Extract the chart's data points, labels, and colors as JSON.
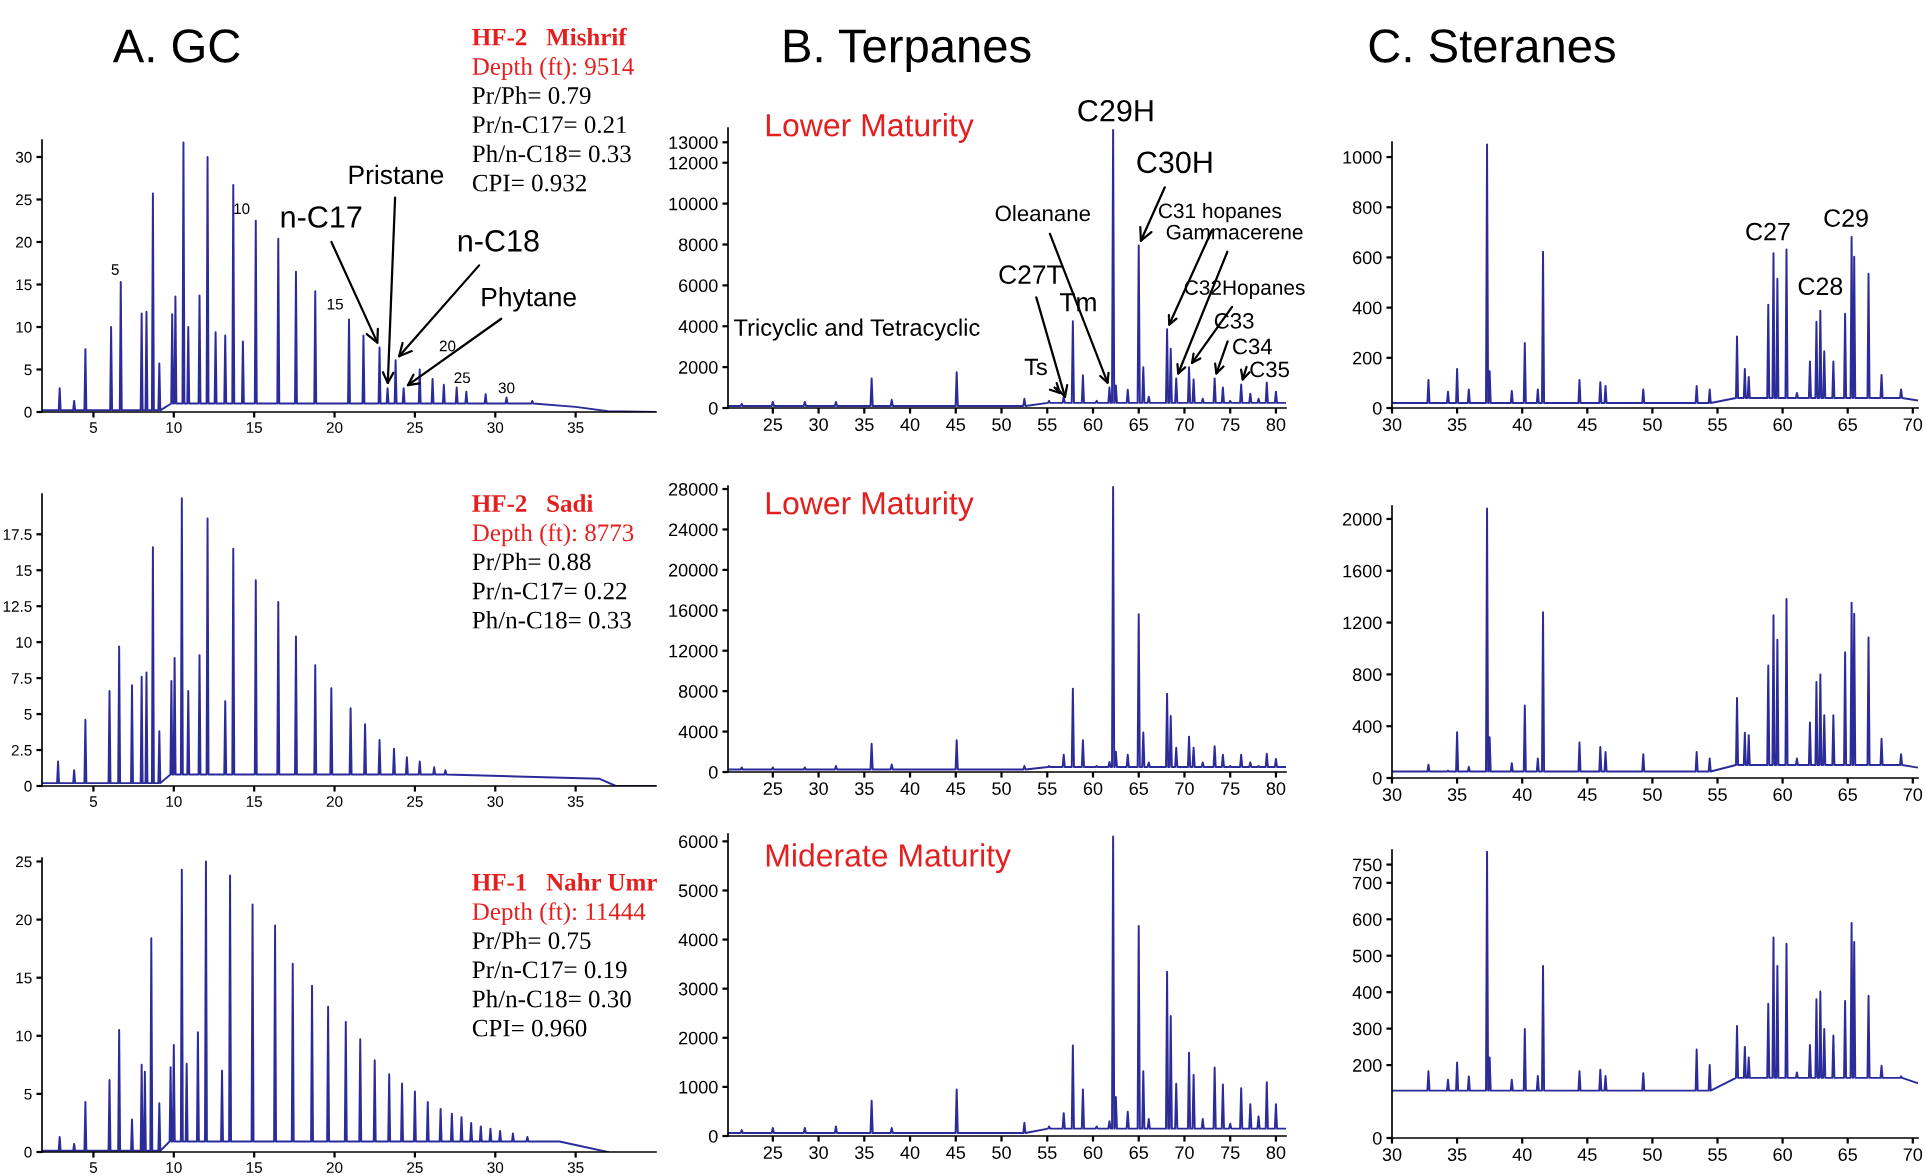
{
  "chart_data": [
    {
      "type": "line",
      "title": "A. GC",
      "color": "#2b2b9a",
      "xlim": [
        1.8,
        40
      ],
      "xticks": [
        5,
        10,
        15,
        20,
        25,
        30,
        35
      ],
      "ylim": [
        0,
        32
      ],
      "yticks": [
        0,
        5,
        10,
        15,
        20,
        25,
        30
      ],
      "x": [
        1.8,
        2.84,
        2.9,
        2.96,
        3.74,
        3.8,
        3.86,
        4.44,
        4.5,
        4.56,
        6.04,
        6.1,
        6.16,
        6.64,
        6.7,
        6.76,
        7.94,
        8.0,
        8.06,
        8.24,
        8.3,
        8.36,
        8.64,
        8.7,
        8.76,
        9.04,
        9.1,
        9.16,
        9.84,
        9.9,
        9.96,
        10.04,
        10.1,
        10.16,
        10.54,
        10.6,
        10.66,
        10.84,
        10.9,
        10.96,
        11.54,
        11.6,
        11.66,
        12.04,
        12.1,
        12.16,
        12.54,
        12.6,
        12.66,
        13.14,
        13.2,
        13.26,
        13.64,
        13.7,
        13.76,
        14.24,
        14.3,
        14.36,
        15.04,
        15.1,
        15.16,
        16.44,
        16.5,
        16.56,
        17.54,
        17.6,
        17.66,
        18.74,
        18.8,
        18.86,
        20.84,
        20.9,
        20.96,
        21.74,
        21.8,
        21.86,
        22.74,
        22.8,
        22.86,
        23.24,
        23.3,
        23.36,
        23.74,
        23.8,
        23.86,
        24.24,
        24.3,
        24.36,
        25.24,
        25.3,
        25.36,
        26.04,
        26.1,
        26.16,
        26.74,
        26.8,
        26.86,
        27.54,
        27.6,
        27.66,
        28.14,
        28.2,
        28.26,
        29.34,
        29.4,
        29.46,
        30.64,
        30.7,
        30.76,
        32.24,
        32.3,
        32.36,
        35,
        37,
        40
      ],
      "values": [
        0.2,
        0.2,
        2.8,
        0.2,
        0.2,
        1.3,
        0.2,
        0.2,
        7.4,
        0.2,
        0.2,
        10,
        0.2,
        0.2,
        15.3,
        0.2,
        0.2,
        11.6,
        0.2,
        0.2,
        11.8,
        0.2,
        0.2,
        25.7,
        0.2,
        0.2,
        5.7,
        0.2,
        1,
        11.5,
        1,
        1,
        13.6,
        1,
        1,
        31.7,
        1,
        1,
        10,
        1,
        1,
        13.7,
        1,
        1,
        30,
        1,
        1,
        9.4,
        1,
        1,
        9,
        1,
        1,
        26.7,
        1,
        1,
        8.3,
        1,
        1,
        22.5,
        1,
        1,
        20.4,
        1,
        1,
        16.5,
        1,
        1,
        14.2,
        1,
        1,
        10.9,
        1,
        1,
        9,
        1,
        1,
        7.6,
        1,
        1,
        2.8,
        1,
        1,
        6.1,
        1,
        1,
        2.8,
        1,
        1,
        5,
        1,
        1,
        3.9,
        1,
        1,
        3.2,
        1,
        1,
        2.9,
        1,
        1,
        2.4,
        1,
        1,
        2.1,
        1,
        1,
        1.7,
        1,
        1,
        1.3,
        1,
        0.6,
        0.1,
        0
      ],
      "annotations": [
        "HF-2   Mishrif",
        "Depth (ft): 9514",
        "Pr/Ph= 0.79",
        "Pr/n-C17= 0.21",
        "Ph/n-C18= 0.33",
        "CPI= 0.932",
        {
          "text": "5",
          "x": 6.7,
          "y": 15.3
        },
        {
          "text": "10",
          "x": 13.7,
          "y": 26.7
        },
        {
          "text": "15",
          "x": 20.9,
          "y": 10.9
        },
        {
          "text": "20",
          "x": 25.3,
          "y": 5
        },
        {
          "text": "25",
          "x": 27.6,
          "y": 2.9
        },
        {
          "text": "30",
          "x": 30.7,
          "y": 1.7
        },
        {
          "text": "n-C17",
          "x": 22.8,
          "y": 7.6
        },
        {
          "text": "Pristane",
          "x": 23.3,
          "y": 2.8
        },
        {
          "text": "n-C18",
          "x": 23.8,
          "y": 6.1
        },
        {
          "text": "Phytane",
          "x": 24.3,
          "y": 2.8
        }
      ]
    },
    {
      "type": "line",
      "title": "B. Terpanes",
      "subtitle": "Lower Maturity",
      "color": "#2b2b9a",
      "xlim": [
        20.1,
        81.1
      ],
      "xticks": [
        25,
        30,
        35,
        40,
        45,
        50,
        55,
        60,
        65,
        70,
        75,
        80
      ],
      "ylim": [
        0,
        13700
      ],
      "yticks": [
        0,
        2000,
        4000,
        6000,
        8000,
        10000,
        12000,
        13000
      ],
      "x": [
        20.1,
        21.48,
        21.6,
        21.72,
        24.88,
        25,
        25.12,
        28.38,
        28.5,
        28.62,
        31.78,
        31.9,
        32.02,
        35.68,
        35.8,
        35.92,
        37.88,
        38,
        38.12,
        44.98,
        45.1,
        45.22,
        52.38,
        52.5,
        52.62,
        55.08,
        55.2,
        55.32,
        56.68,
        56.8,
        56.92,
        57.68,
        57.8,
        57.92,
        58.78,
        58.9,
        59.02,
        60.28,
        60.4,
        60.52,
        61.68,
        61.8,
        61.92,
        62.08,
        62.2,
        62.32,
        62.38,
        62.5,
        62.62,
        63.68,
        63.8,
        63.92,
        64.88,
        65.0,
        65.12,
        65.38,
        65.5,
        65.62,
        65.98,
        66.1,
        66.22,
        67.98,
        68.1,
        68.22,
        68.38,
        68.5,
        68.62,
        68.98,
        69.1,
        69.22,
        70.38,
        70.5,
        70.62,
        70.88,
        71.0,
        71.12,
        71.88,
        72,
        72.12,
        73.18,
        73.3,
        73.42,
        74.08,
        74.2,
        74.32,
        74.88,
        75,
        75.12,
        76.08,
        76.2,
        76.32,
        77.08,
        77.2,
        77.32,
        77.98,
        78.1,
        78.22,
        78.88,
        79,
        79.12,
        79.88,
        80,
        80.12,
        81.1
      ],
      "values": [
        100,
        100,
        200,
        100,
        100,
        300,
        100,
        100,
        300,
        100,
        100,
        300,
        100,
        100,
        1450,
        100,
        100,
        400,
        100,
        100,
        1750,
        100,
        100,
        450,
        100,
        250,
        350,
        250,
        250,
        550,
        250,
        250,
        4250,
        250,
        250,
        1600,
        250,
        250,
        350,
        250,
        250,
        1000,
        250,
        250,
        13600,
        250,
        250,
        1100,
        250,
        250,
        900,
        250,
        250,
        7950,
        250,
        250,
        2000,
        250,
        250,
        550,
        250,
        250,
        3850,
        250,
        250,
        2900,
        250,
        250,
        1450,
        250,
        250,
        2000,
        250,
        250,
        1400,
        250,
        250,
        450,
        250,
        250,
        1450,
        250,
        250,
        1000,
        250,
        250,
        350,
        250,
        250,
        1150,
        250,
        250,
        700,
        250,
        250,
        450,
        250,
        250,
        1250,
        250,
        250,
        800,
        250,
        250
      ],
      "annotations": [
        "Tricyclic and Tetracyclic",
        {
          "text": "Ts",
          "x": 56.8,
          "y": 550
        },
        {
          "text": "Tm",
          "x": 57.8,
          "y": 4250
        },
        {
          "text": "C27T",
          "x": 57.1,
          "y": 300
        },
        {
          "text": "Oleanane",
          "x": 61.8,
          "y": 1000
        },
        {
          "text": "C29H",
          "x": 62.2,
          "y": 13600
        },
        {
          "text": "C30H",
          "x": 65.0,
          "y": 7950
        },
        {
          "text": "C31 hopanes",
          "x": 68.1,
          "y": 3850
        },
        {
          "text": "Gammacerene",
          "x": 69.1,
          "y": 1450
        },
        {
          "text": "C32Hopanes",
          "x": 70.5,
          "y": 2000
        },
        {
          "text": "C33",
          "x": 73.3,
          "y": 1450
        },
        {
          "text": "C34",
          "x": 76.2,
          "y": 1150
        },
        {
          "text": "C35",
          "x": 79,
          "y": 1250
        }
      ]
    },
    {
      "type": "line",
      "title": "C. Steranes",
      "color": "#2b2b9a",
      "xlim": [
        30,
        70.4
      ],
      "xticks": [
        30,
        35,
        40,
        45,
        50,
        55,
        60,
        65,
        70
      ],
      "ylim": [
        0,
        1060
      ],
      "yticks": [
        0,
        200,
        400,
        600,
        800,
        1000
      ],
      "x": [
        30,
        32.72,
        32.8,
        32.88,
        34.22,
        34.3,
        34.38,
        34.92,
        35.0,
        35.08,
        35.82,
        35.9,
        35.98,
        37.22,
        37.3,
        37.38,
        37.42,
        37.5,
        37.58,
        39.12,
        39.2,
        39.28,
        40.12,
        40.2,
        40.28,
        41.12,
        41.2,
        41.28,
        41.52,
        41.6,
        41.68,
        44.32,
        44.4,
        44.48,
        45.92,
        46.0,
        46.08,
        46.32,
        46.4,
        46.48,
        49.22,
        49.3,
        49.38,
        53.32,
        53.4,
        53.48,
        54.32,
        54.4,
        54.48,
        56.42,
        56.5,
        56.58,
        57.02,
        57.1,
        57.18,
        57.32,
        57.4,
        57.48,
        58.82,
        58.9,
        58.98,
        59.22,
        59.3,
        59.38,
        59.52,
        59.6,
        59.68,
        60.22,
        60.3,
        60.38,
        61.02,
        61.1,
        61.18,
        62.02,
        62.1,
        62.18,
        62.52,
        62.6,
        62.68,
        62.82,
        62.9,
        62.98,
        63.12,
        63.2,
        63.28,
        63.82,
        63.9,
        63.98,
        64.72,
        64.8,
        64.88,
        65.22,
        65.3,
        65.38,
        65.42,
        65.5,
        65.58,
        66.52,
        66.6,
        66.68,
        67.52,
        67.6,
        67.68,
        69.02,
        69.1,
        69.18,
        70.4
      ],
      "values": [
        20,
        20,
        112,
        20,
        20,
        65,
        20,
        20,
        156,
        20,
        20,
        74,
        20,
        20,
        1050,
        20,
        20,
        147,
        20,
        20,
        68,
        20,
        20,
        259,
        20,
        20,
        74,
        20,
        20,
        623,
        20,
        20,
        112,
        20,
        20,
        103,
        20,
        20,
        88,
        20,
        20,
        74,
        20,
        20,
        88,
        20,
        20,
        74,
        20,
        40,
        285,
        40,
        40,
        156,
        40,
        40,
        124,
        40,
        40,
        412,
        40,
        40,
        617,
        40,
        40,
        515,
        40,
        40,
        632,
        40,
        40,
        60,
        40,
        40,
        185,
        40,
        40,
        344,
        40,
        40,
        388,
        40,
        40,
        226,
        40,
        40,
        185,
        40,
        40,
        376,
        40,
        40,
        682,
        40,
        40,
        603,
        40,
        40,
        535,
        40,
        40,
        132,
        40,
        40,
        74,
        40,
        30
      ],
      "annotations": [
        {
          "text": "C27",
          "x": 59.3,
          "y": 617
        },
        {
          "text": "C28",
          "x": 62.9,
          "y": 388
        },
        {
          "text": "C29",
          "x": 65.3,
          "y": 682
        }
      ]
    },
    {
      "type": "line",
      "color": "#2b2b9a",
      "xlim": [
        1.8,
        40
      ],
      "xticks": [
        5,
        10,
        15,
        20,
        25,
        30,
        35
      ],
      "ylim": [
        0,
        20.3
      ],
      "yticks": [
        0,
        2.5,
        5,
        7.5,
        10,
        12.5,
        15,
        17.5
      ],
      "x": [
        1.8,
        2.74,
        2.8,
        2.86,
        3.74,
        3.8,
        3.86,
        4.44,
        4.5,
        4.56,
        5.94,
        6.0,
        6.06,
        6.54,
        6.6,
        6.66,
        7.34,
        7.4,
        7.46,
        7.94,
        8.0,
        8.06,
        8.24,
        8.3,
        8.36,
        8.64,
        8.7,
        8.76,
        9.04,
        9.1,
        9.16,
        9.79,
        9.85,
        9.91,
        9.99,
        10.05,
        10.11,
        10.44,
        10.5,
        10.56,
        10.84,
        10.9,
        10.96,
        11.54,
        11.6,
        11.66,
        12.04,
        12.1,
        12.16,
        13.14,
        13.2,
        13.26,
        13.64,
        13.7,
        13.76,
        15.04,
        15.1,
        15.16,
        16.44,
        16.5,
        16.56,
        17.54,
        17.6,
        17.66,
        18.74,
        18.8,
        18.86,
        19.74,
        19.8,
        19.86,
        20.94,
        21.0,
        21.06,
        21.84,
        21.9,
        21.96,
        22.74,
        22.8,
        22.86,
        23.64,
        23.7,
        23.76,
        24.44,
        24.5,
        24.56,
        25.24,
        25.3,
        25.36,
        26.14,
        26.2,
        26.26,
        26.84,
        26.9,
        26.96,
        36.5,
        37.5,
        40
      ],
      "values": [
        0.2,
        0.2,
        1.7,
        0.2,
        0.2,
        1.1,
        0.2,
        0.2,
        4.6,
        0.2,
        0.2,
        6.6,
        0.2,
        0.2,
        9.7,
        0.2,
        0.2,
        7,
        0.2,
        0.2,
        7.6,
        0.2,
        0.2,
        7.9,
        0.2,
        0.2,
        16.6,
        0.2,
        0.2,
        3.8,
        0.2,
        0.8,
        7.3,
        0.8,
        0.8,
        8.9,
        0.8,
        0.8,
        20,
        0.8,
        0.8,
        6.6,
        0.8,
        0.8,
        9.1,
        0.8,
        0.8,
        18.6,
        0.8,
        0.8,
        5.9,
        0.8,
        0.8,
        16.5,
        0.8,
        0.8,
        14.3,
        0.8,
        0.8,
        12.8,
        0.8,
        0.8,
        10.4,
        0.8,
        0.8,
        8.4,
        0.8,
        0.8,
        6.8,
        0.8,
        0.8,
        5.4,
        0.8,
        0.8,
        4.3,
        0.8,
        0.8,
        3.2,
        0.8,
        0.8,
        2.6,
        0.8,
        0.8,
        2,
        0.8,
        0.8,
        1.7,
        0.8,
        0.8,
        1.3,
        0.8,
        0.8,
        1.1,
        0.8,
        0.5,
        0,
        0
      ],
      "annotations": [
        "HF-2   Sadi",
        "Depth (ft): 8773",
        "Pr/Ph= 0.88",
        "Pr/n-C17= 0.22",
        "Ph/n-C18= 0.33"
      ]
    },
    {
      "type": "line",
      "subtitle": "Lower Maturity",
      "color": "#2b2b9a",
      "xlim": [
        20.1,
        81.1
      ],
      "xticks": [
        25,
        30,
        35,
        40,
        45,
        50,
        55,
        60,
        65,
        70,
        75,
        80
      ],
      "ylim": [
        0,
        28300
      ],
      "yticks": [
        0,
        4000,
        8000,
        12000,
        16000,
        20000,
        24000,
        28000
      ],
      "x": [
        20.1,
        21.48,
        21.6,
        21.72,
        24.88,
        25,
        25.12,
        28.38,
        28.5,
        28.62,
        31.78,
        31.9,
        32.02,
        35.68,
        35.8,
        35.92,
        37.88,
        38,
        38.12,
        44.98,
        45.1,
        45.22,
        52.38,
        52.5,
        52.62,
        55.08,
        55.2,
        55.32,
        56.68,
        56.8,
        56.92,
        57.68,
        57.8,
        57.92,
        58.78,
        58.9,
        59.02,
        60.28,
        60.4,
        60.52,
        61.68,
        61.8,
        61.92,
        62.08,
        62.2,
        62.32,
        62.38,
        62.5,
        62.62,
        63.68,
        63.8,
        63.92,
        64.88,
        65.0,
        65.12,
        65.38,
        65.5,
        65.62,
        65.98,
        66.1,
        66.22,
        67.98,
        68.1,
        68.22,
        68.38,
        68.5,
        68.62,
        68.98,
        69.1,
        69.22,
        70.38,
        70.5,
        70.62,
        70.88,
        71.0,
        71.12,
        71.88,
        72,
        72.12,
        73.18,
        73.3,
        73.42,
        74.08,
        74.2,
        74.32,
        74.88,
        75,
        75.12,
        76.08,
        76.2,
        76.32,
        77.08,
        77.2,
        77.32,
        77.98,
        78.1,
        78.22,
        78.88,
        79,
        79.12,
        79.88,
        80,
        80.12,
        81.1
      ],
      "values": [
        250,
        250,
        450,
        250,
        250,
        450,
        250,
        250,
        450,
        250,
        250,
        600,
        250,
        250,
        2800,
        250,
        250,
        750,
        250,
        250,
        3150,
        250,
        250,
        600,
        250,
        500,
        600,
        500,
        500,
        1700,
        500,
        500,
        8250,
        500,
        500,
        3150,
        500,
        500,
        600,
        500,
        500,
        1000,
        500,
        500,
        28200,
        500,
        500,
        2000,
        500,
        500,
        1700,
        500,
        500,
        15600,
        500,
        500,
        3900,
        500,
        500,
        950,
        500,
        500,
        7750,
        500,
        500,
        5550,
        500,
        500,
        2400,
        500,
        500,
        3500,
        500,
        500,
        2400,
        500,
        500,
        950,
        500,
        500,
        2550,
        500,
        500,
        1700,
        500,
        500,
        600,
        500,
        500,
        1700,
        500,
        500,
        950,
        500,
        500,
        600,
        500,
        500,
        1800,
        500,
        500,
        1300,
        500,
        500
      ]
    },
    {
      "type": "line",
      "color": "#2b2b9a",
      "xlim": [
        30,
        70.4
      ],
      "xticks": [
        30,
        35,
        40,
        45,
        50,
        55,
        60,
        65,
        70
      ],
      "ylim": [
        0,
        2100
      ],
      "yticks": [
        0,
        400,
        800,
        1200,
        1600,
        2000
      ],
      "x": [
        30,
        32.72,
        32.8,
        32.88,
        34.22,
        34.3,
        34.38,
        34.92,
        35.0,
        35.08,
        35.82,
        35.9,
        35.98,
        37.22,
        37.3,
        37.38,
        37.42,
        37.5,
        37.58,
        39.12,
        39.2,
        39.28,
        40.12,
        40.2,
        40.28,
        41.12,
        41.2,
        41.28,
        41.52,
        41.6,
        41.68,
        44.32,
        44.4,
        44.48,
        45.92,
        46.0,
        46.08,
        46.32,
        46.4,
        46.48,
        49.22,
        49.3,
        49.38,
        53.32,
        53.4,
        53.48,
        54.32,
        54.4,
        54.48,
        56.42,
        56.5,
        56.58,
        57.02,
        57.1,
        57.18,
        57.32,
        57.4,
        57.48,
        58.82,
        58.9,
        58.98,
        59.22,
        59.3,
        59.38,
        59.52,
        59.6,
        59.68,
        60.22,
        60.3,
        60.38,
        61.02,
        61.1,
        61.18,
        62.02,
        62.1,
        62.18,
        62.52,
        62.6,
        62.68,
        62.82,
        62.9,
        62.98,
        63.12,
        63.2,
        63.28,
        63.82,
        63.9,
        63.98,
        64.72,
        64.8,
        64.88,
        65.22,
        65.3,
        65.38,
        65.42,
        65.5,
        65.58,
        66.52,
        66.6,
        66.68,
        67.52,
        67.6,
        67.68,
        69.02,
        69.1,
        69.18,
        70.4
      ],
      "values": [
        50,
        50,
        103,
        50,
        50,
        57,
        50,
        50,
        354,
        50,
        50,
        86,
        50,
        50,
        2080,
        50,
        50,
        314,
        50,
        50,
        114,
        50,
        50,
        560,
        50,
        50,
        150,
        50,
        50,
        1280,
        50,
        50,
        274,
        50,
        50,
        240,
        50,
        50,
        200,
        50,
        50,
        183,
        50,
        50,
        200,
        50,
        50,
        150,
        50,
        100,
        617,
        100,
        100,
        350,
        100,
        100,
        331,
        100,
        100,
        868,
        100,
        100,
        1256,
        100,
        100,
        1068,
        100,
        100,
        1382,
        100,
        100,
        150,
        100,
        100,
        428,
        100,
        100,
        742,
        100,
        100,
        800,
        100,
        100,
        485,
        100,
        100,
        485,
        100,
        100,
        971,
        100,
        100,
        1353,
        100,
        100,
        1268,
        100,
        100,
        1085,
        100,
        100,
        303,
        100,
        100,
        183,
        100,
        80
      ]
    },
    {
      "type": "line",
      "color": "#2b2b9a",
      "xlim": [
        1.8,
        40
      ],
      "xticks": [
        5,
        10,
        15,
        20,
        25,
        30,
        35
      ],
      "ylim": [
        0,
        25.3
      ],
      "yticks": [
        0,
        5,
        10,
        15,
        20,
        25
      ],
      "x": [
        1.8,
        2.84,
        2.9,
        2.96,
        3.74,
        3.8,
        3.86,
        4.44,
        4.5,
        4.56,
        5.94,
        6.0,
        6.06,
        6.54,
        6.6,
        6.66,
        7.34,
        7.4,
        7.46,
        7.94,
        8.0,
        8.06,
        8.14,
        8.2,
        8.26,
        8.54,
        8.6,
        8.66,
        9.04,
        9.1,
        9.16,
        9.74,
        9.8,
        9.86,
        9.94,
        10.0,
        10.06,
        10.44,
        10.5,
        10.56,
        10.74,
        10.8,
        10.86,
        11.44,
        11.5,
        11.56,
        11.94,
        12.0,
        12.06,
        12.94,
        13.0,
        13.06,
        13.44,
        13.5,
        13.56,
        14.84,
        14.9,
        14.96,
        16.24,
        16.3,
        16.36,
        17.34,
        17.4,
        17.46,
        18.54,
        18.6,
        18.66,
        19.54,
        19.6,
        19.66,
        20.64,
        20.7,
        20.76,
        21.54,
        21.6,
        21.66,
        22.44,
        22.5,
        22.56,
        23.34,
        23.4,
        23.46,
        24.14,
        24.2,
        24.26,
        24.94,
        25.0,
        25.06,
        25.74,
        25.8,
        25.86,
        26.54,
        26.6,
        26.66,
        27.24,
        27.3,
        27.36,
        27.84,
        27.9,
        27.96,
        28.44,
        28.5,
        28.56,
        29.04,
        29.1,
        29.16,
        29.64,
        29.7,
        29.76,
        30.24,
        30.3,
        30.36,
        31.04,
        31.1,
        31.16,
        31.94,
        32.0,
        32.06,
        34,
        37
      ],
      "values": [
        0.1,
        0.1,
        1.3,
        0.1,
        0.1,
        0.7,
        0.1,
        0.1,
        4.3,
        0.1,
        0.1,
        6.2,
        0.1,
        0.1,
        10.5,
        0.1,
        0.1,
        2.8,
        0.1,
        0.1,
        7.5,
        0.1,
        0.1,
        6.9,
        0.1,
        0.1,
        18.4,
        0.1,
        0.1,
        4.2,
        0.1,
        0.9,
        7.3,
        0.9,
        0.9,
        9.2,
        0.9,
        0.9,
        24.3,
        0.9,
        0.9,
        7.6,
        0.9,
        0.9,
        10.3,
        0.9,
        0.9,
        25,
        0.9,
        0.9,
        7,
        0.9,
        0.9,
        23.8,
        0.9,
        0.9,
        21.3,
        0.9,
        0.9,
        19.5,
        0.9,
        0.9,
        16.2,
        0.9,
        0.9,
        14.3,
        0.9,
        0.9,
        12.5,
        0.9,
        0.9,
        11.2,
        0.9,
        0.9,
        9.7,
        0.9,
        0.9,
        7.9,
        0.9,
        0.9,
        6.7,
        0.9,
        0.9,
        5.9,
        0.9,
        0.9,
        5.2,
        0.9,
        0.9,
        4.3,
        0.9,
        0.9,
        3.7,
        0.9,
        0.9,
        3.3,
        0.9,
        0.9,
        3,
        0.9,
        0.9,
        2.5,
        0.9,
        0.9,
        2.2,
        0.9,
        0.9,
        2,
        0.9,
        0.9,
        1.8,
        0.9,
        0.9,
        1.6,
        0.9,
        0.9,
        1.3,
        0.9,
        0.9,
        0
      ],
      "annotations": [
        "HF-1   Nahr Umr",
        "Depth (ft): 11444",
        "Pr/Ph= 0.75",
        "Pr/n-C17= 0.19",
        "Ph/n-C18= 0.30",
        "CPI= 0.960"
      ]
    },
    {
      "type": "line",
      "subtitle": "Miderate Maturity",
      "color": "#2b2b9a",
      "xlim": [
        20.1,
        81.1
      ],
      "xticks": [
        25,
        30,
        35,
        40,
        45,
        50,
        55,
        60,
        65,
        70,
        75,
        80
      ],
      "ylim": [
        0,
        6150
      ],
      "yticks": [
        0,
        1000,
        2000,
        3000,
        4000,
        5000,
        6000
      ],
      "x": [
        20.1,
        21.48,
        21.6,
        21.72,
        24.88,
        25,
        25.12,
        28.38,
        28.5,
        28.62,
        31.78,
        31.9,
        32.02,
        35.68,
        35.8,
        35.92,
        37.88,
        38,
        38.12,
        44.98,
        45.1,
        45.22,
        52.38,
        52.5,
        52.62,
        55.08,
        55.2,
        55.32,
        56.68,
        56.8,
        56.92,
        57.68,
        57.8,
        57.92,
        58.78,
        58.9,
        59.02,
        60.28,
        60.4,
        60.52,
        61.68,
        61.8,
        61.92,
        62.08,
        62.2,
        62.32,
        62.38,
        62.5,
        62.62,
        63.68,
        63.8,
        63.92,
        64.88,
        65.0,
        65.12,
        65.38,
        65.5,
        65.62,
        65.98,
        66.1,
        66.22,
        67.98,
        68.1,
        68.22,
        68.38,
        68.5,
        68.62,
        68.98,
        69.1,
        69.22,
        70.38,
        70.5,
        70.62,
        70.88,
        71.0,
        71.12,
        71.88,
        72,
        72.12,
        73.18,
        73.3,
        73.42,
        74.08,
        74.2,
        74.32,
        74.88,
        75,
        75.12,
        76.08,
        76.2,
        76.32,
        77.08,
        77.2,
        77.32,
        77.98,
        78.1,
        78.22,
        78.88,
        79,
        79.12,
        79.88,
        80,
        80.12,
        81.1
      ],
      "values": [
        60,
        60,
        120,
        60,
        60,
        165,
        60,
        60,
        165,
        60,
        60,
        195,
        60,
        60,
        720,
        60,
        60,
        165,
        60,
        60,
        945,
        60,
        60,
        270,
        60,
        150,
        195,
        150,
        150,
        465,
        150,
        150,
        1845,
        150,
        150,
        945,
        150,
        150,
        195,
        150,
        150,
        300,
        150,
        150,
        6100,
        150,
        150,
        795,
        150,
        150,
        495,
        150,
        150,
        4275,
        150,
        150,
        1320,
        150,
        150,
        345,
        150,
        150,
        3345,
        150,
        150,
        2445,
        150,
        150,
        1065,
        150,
        150,
        1695,
        150,
        150,
        1245,
        150,
        150,
        345,
        150,
        150,
        1395,
        150,
        150,
        1050,
        150,
        150,
        250,
        150,
        150,
        975,
        150,
        150,
        645,
        150,
        150,
        400,
        150,
        150,
        1095,
        150,
        150,
        645,
        150,
        150
      ]
    },
    {
      "type": "line",
      "color": "#2b2b9a",
      "xlim": [
        30,
        70.4
      ],
      "xticks": [
        30,
        35,
        40,
        45,
        50,
        55,
        60,
        65,
        70
      ],
      "ylim": [
        0,
        790
      ],
      "yticks": [
        0,
        200,
        300,
        400,
        500,
        600,
        700,
        750
      ],
      "x": [
        30,
        32.72,
        32.8,
        32.88,
        34.22,
        34.3,
        34.38,
        34.92,
        35.0,
        35.08,
        35.82,
        35.9,
        35.98,
        37.22,
        37.3,
        37.38,
        37.42,
        37.5,
        37.58,
        39.12,
        39.2,
        39.28,
        40.12,
        40.2,
        40.28,
        41.12,
        41.2,
        41.28,
        41.52,
        41.6,
        41.68,
        44.32,
        44.4,
        44.48,
        45.92,
        46.0,
        46.08,
        46.32,
        46.4,
        46.48,
        49.22,
        49.3,
        49.38,
        53.32,
        53.4,
        53.48,
        54.32,
        54.4,
        54.48,
        56.42,
        56.5,
        56.58,
        57.02,
        57.1,
        57.18,
        57.32,
        57.4,
        57.48,
        58.82,
        58.9,
        58.98,
        59.22,
        59.3,
        59.38,
        59.52,
        59.6,
        59.68,
        60.22,
        60.3,
        60.38,
        61.02,
        61.1,
        61.18,
        62.02,
        62.1,
        62.18,
        62.52,
        62.6,
        62.68,
        62.82,
        62.9,
        62.98,
        63.12,
        63.2,
        63.28,
        63.82,
        63.9,
        63.98,
        64.72,
        64.8,
        64.88,
        65.22,
        65.3,
        65.38,
        65.42,
        65.5,
        65.58,
        66.52,
        66.6,
        66.68,
        67.52,
        67.6,
        67.68,
        69.02,
        69.1,
        69.18,
        70.4
      ],
      "values": [
        130,
        130,
        183,
        130,
        130,
        160,
        130,
        130,
        207,
        130,
        130,
        169,
        130,
        130,
        785,
        130,
        130,
        221,
        130,
        130,
        160,
        130,
        130,
        299,
        130,
        130,
        170,
        130,
        130,
        472,
        130,
        130,
        183,
        130,
        130,
        187,
        130,
        130,
        170,
        130,
        130,
        178,
        130,
        130,
        243,
        130,
        130,
        200,
        130,
        165,
        307,
        165,
        165,
        250,
        165,
        165,
        221,
        165,
        165,
        368,
        165,
        165,
        550,
        165,
        165,
        472,
        165,
        165,
        533,
        165,
        165,
        180,
        165,
        165,
        255,
        165,
        165,
        381,
        165,
        165,
        402,
        165,
        165,
        299,
        165,
        165,
        281,
        165,
        165,
        376,
        165,
        165,
        590,
        165,
        165,
        538,
        165,
        165,
        390,
        165,
        165,
        198,
        165,
        165,
        169,
        165,
        150
      ]
    }
  ]
}
